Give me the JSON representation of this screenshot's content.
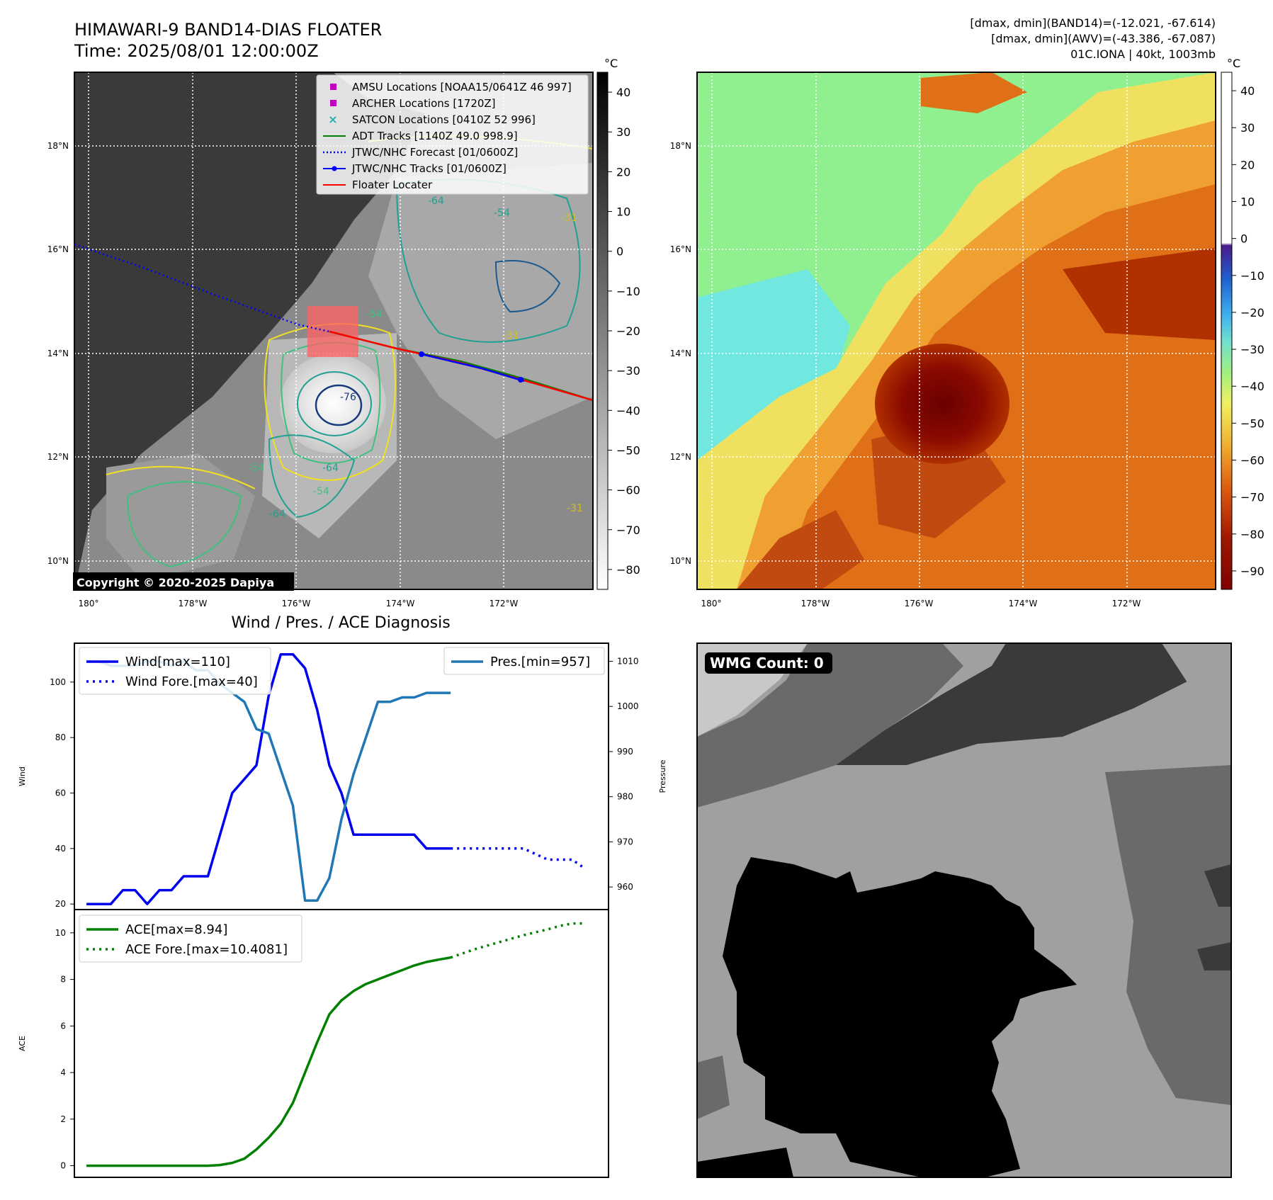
{
  "header": {
    "title_line1": "HIMAWARI-9 BAND14-DIAS FLOATER",
    "title_line2": "Time: 2025/08/01 12:00:00Z",
    "stats_line1": "[dmax, dmin](BAND14)=(-12.021, -67.614)",
    "stats_line2": "[dmax, dmin](AWV)=(-43.386, -67.087)",
    "stats_line3": "01C.IONA | 40kt, 1003mb"
  },
  "copyright": "Copyright © 2020-2025 Dapiya",
  "map_axes": {
    "lon_labels": [
      "180°",
      "178°W",
      "176°W",
      "174°W",
      "172°W"
    ],
    "lat_labels": [
      "18°N",
      "16°N",
      "14°N",
      "12°N",
      "10°N"
    ]
  },
  "legend_top": [
    {
      "label": "AMSU Locations [NOAA15/0641Z 46 997]",
      "icon": "magenta-square",
      "color": "#c000c0"
    },
    {
      "label": "ARCHER Locations [1720Z]",
      "icon": "magenta-square",
      "color": "#c000c0"
    },
    {
      "label": "SATCON Locations [0410Z 52 996]",
      "icon": "cyan-x",
      "color": "#20b0b0"
    },
    {
      "label": "ADT Tracks [1140Z 49.0 998.9]",
      "icon": "green-line",
      "color": "#008000"
    },
    {
      "label": "JTWC/NHC Forecast [01/0600Z]",
      "icon": "blue-dotted-line",
      "color": "#0000ff"
    },
    {
      "label": "JTWC/NHC Tracks [01/0600Z]",
      "icon": "blue-line-dot",
      "color": "#0000ff"
    },
    {
      "label": "Floater Locater",
      "icon": "red-line",
      "color": "#ff0000"
    }
  ],
  "colorbar_gray": {
    "unit": "°C",
    "ticks": [
      "40",
      "30",
      "20",
      "10",
      "0",
      "−10",
      "−20",
      "−30",
      "−40",
      "−50",
      "−60",
      "−70",
      "−80"
    ]
  },
  "colorbar_color": {
    "unit": "°C",
    "ticks": [
      "40",
      "30",
      "20",
      "10",
      "0",
      "−10",
      "−20",
      "−30",
      "−40",
      "−50",
      "−60",
      "−70",
      "−80",
      "−90"
    ]
  },
  "contour_labels": [
    "-64",
    "-54",
    "-31",
    "-76",
    "-54",
    "-64",
    "-31",
    "-54",
    "-31",
    "-64",
    "-54"
  ],
  "wmg": {
    "label": "WMG Count: 0"
  },
  "colors": {
    "wind": "#0000ee",
    "pressure": "#1f77b4",
    "ace": "#008000",
    "floater": "#ff0000"
  },
  "chart_data": [
    {
      "type": "line",
      "title": "Wind / Pres. / ACE Diagnosis",
      "ylabel": "Wind",
      "y2label": "Pressure",
      "ylim": [
        18,
        114
      ],
      "y2lim": [
        955,
        1014
      ],
      "yticks": [
        20,
        40,
        60,
        80,
        100
      ],
      "y2ticks": [
        960,
        970,
        980,
        990,
        1000,
        1010
      ],
      "xlim": [
        -1,
        43
      ],
      "series": [
        {
          "name": "Wind[max=110]",
          "axis": "left",
          "style": "solid",
          "x": [
            0,
            1,
            2,
            3,
            4,
            5,
            6,
            7,
            8,
            9,
            10,
            11,
            12,
            13,
            14,
            15,
            16,
            17,
            18,
            19,
            20,
            21,
            22,
            23,
            24,
            25,
            26,
            27,
            28,
            29,
            30
          ],
          "values": [
            20,
            20,
            20,
            25,
            25,
            20,
            25,
            25,
            30,
            30,
            30,
            45,
            60,
            65,
            70,
            95,
            110,
            110,
            105,
            90,
            70,
            60,
            45,
            45,
            45,
            45,
            45,
            45,
            40,
            40,
            40
          ]
        },
        {
          "name": "Wind Fore.[max=40]",
          "axis": "left",
          "style": "dotted",
          "x": [
            30,
            33,
            36,
            37,
            38,
            39,
            40,
            41
          ],
          "values": [
            40,
            40,
            40,
            38,
            36,
            36,
            36,
            33
          ]
        },
        {
          "name": "Pres.[min=957]",
          "axis": "right",
          "style": "solid",
          "x": [
            0,
            1,
            2,
            3,
            4,
            5,
            6,
            7,
            8,
            9,
            10,
            11,
            12,
            13,
            14,
            15,
            16,
            17,
            18,
            19,
            20,
            21,
            22,
            23,
            24,
            25,
            26,
            27,
            28,
            29,
            30
          ],
          "values": [
            1010,
            1010,
            1009,
            1009,
            1009,
            1010,
            1010,
            1009,
            1010,
            1008,
            1008,
            1005,
            1003,
            1001,
            995,
            994,
            986,
            978,
            957,
            957,
            962,
            975,
            985,
            993,
            1001,
            1001,
            1002,
            1002,
            1003,
            1003,
            1003
          ]
        }
      ]
    },
    {
      "type": "line",
      "ylabel": "ACE",
      "ylim": [
        -0.5,
        11
      ],
      "yticks": [
        0,
        2,
        4,
        6,
        8,
        10
      ],
      "xlim": [
        -1,
        43
      ],
      "series": [
        {
          "name": "ACE[max=8.94]",
          "style": "solid",
          "x": [
            0,
            2,
            4,
            6,
            8,
            10,
            11,
            12,
            13,
            14,
            15,
            16,
            17,
            18,
            19,
            20,
            21,
            22,
            23,
            24,
            25,
            26,
            27,
            28,
            29,
            30
          ],
          "values": [
            0,
            0,
            0,
            0,
            0,
            0,
            0.03,
            0.12,
            0.3,
            0.7,
            1.2,
            1.8,
            2.7,
            4.0,
            5.3,
            6.5,
            7.1,
            7.5,
            7.8,
            8.0,
            8.2,
            8.4,
            8.6,
            8.75,
            8.85,
            8.94
          ]
        },
        {
          "name": "ACE Fore.[max=10.4081]",
          "style": "dotted",
          "x": [
            30,
            32,
            34,
            36,
            38,
            39,
            40,
            41
          ],
          "values": [
            8.94,
            9.3,
            9.6,
            9.9,
            10.15,
            10.3,
            10.4,
            10.4081
          ]
        }
      ]
    }
  ]
}
